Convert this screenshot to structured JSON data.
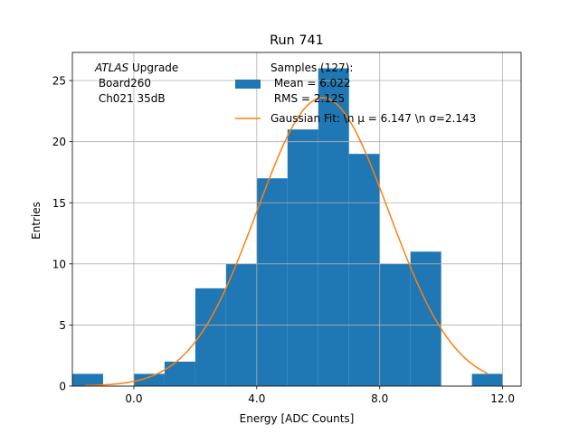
{
  "chart_data": {
    "type": "bar",
    "subtype": "histogram",
    "title": "Run 741",
    "xlabel": "Energy [ADC Counts]",
    "ylabel": "Entries",
    "xlim": [
      -2.0,
      12.6
    ],
    "ylim": [
      0,
      27.3
    ],
    "grid": true,
    "x_ticks": [
      0,
      4,
      8,
      12
    ],
    "x_tick_labels": [
      "0.0",
      "4.0",
      "8.0",
      "12.0"
    ],
    "y_ticks": [
      0,
      5,
      10,
      15,
      20,
      25
    ],
    "y_tick_labels": [
      "0",
      "5",
      "10",
      "15",
      "20",
      "25"
    ],
    "bin_edges": [
      -2,
      -1,
      0,
      1,
      2,
      3,
      4,
      5,
      6,
      7,
      8,
      9,
      10,
      11,
      12
    ],
    "values": [
      1,
      0,
      1,
      2,
      8,
      10,
      17,
      21,
      26,
      19,
      10,
      11,
      0,
      1
    ],
    "series": [
      {
        "name": "Samples (127):\n Mean = 6.022\n RMS = 2.125",
        "legend_lines": [
          "Samples (127):",
          " Mean = 6.022",
          " RMS = 2.125"
        ],
        "type": "bar",
        "color": "#1f77b4"
      },
      {
        "name": "Gaussian Fit: \\n μ = 6.147 \\n σ=2.143",
        "type": "line",
        "color": "#ff7f0e",
        "fit": {
          "mu": 6.147,
          "sigma": 2.143,
          "amplitude": 23.6,
          "x_range": [
            -1.6,
            11.5
          ]
        }
      }
    ],
    "legend_location": "upper-right",
    "annotation": {
      "italic": "ATLAS",
      "rest": " Upgrade",
      "lines": [
        " Board260",
        " Ch021 35dB"
      ]
    }
  }
}
